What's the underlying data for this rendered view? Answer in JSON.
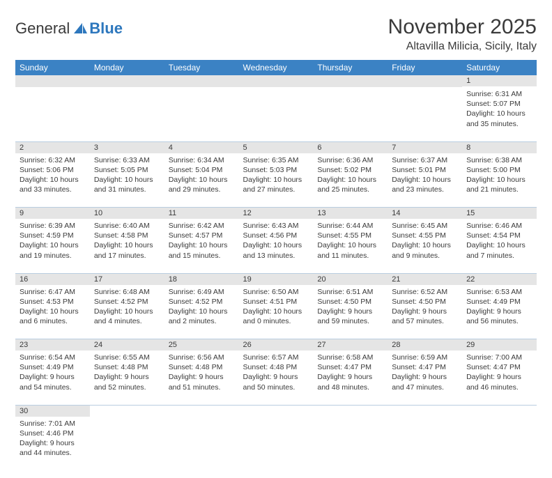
{
  "logo": {
    "text1": "General",
    "text2": "Blue"
  },
  "title": "November 2025",
  "location": "Altavilla Milicia, Sicily, Italy",
  "day_headers": [
    "Sunday",
    "Monday",
    "Tuesday",
    "Wednesday",
    "Thursday",
    "Friday",
    "Saturday"
  ],
  "colors": {
    "header_bg": "#3b82c4",
    "header_text": "#ffffff",
    "daynum_bg": "#e5e5e5",
    "border": "#b9cde0",
    "text": "#3a3a3a",
    "logo_blue": "#2d77bd"
  },
  "weeks": [
    [
      null,
      null,
      null,
      null,
      null,
      null,
      {
        "n": "1",
        "sr": "6:31 AM",
        "ss": "5:07 PM",
        "dl": "10 hours and 35 minutes."
      }
    ],
    [
      {
        "n": "2",
        "sr": "6:32 AM",
        "ss": "5:06 PM",
        "dl": "10 hours and 33 minutes."
      },
      {
        "n": "3",
        "sr": "6:33 AM",
        "ss": "5:05 PM",
        "dl": "10 hours and 31 minutes."
      },
      {
        "n": "4",
        "sr": "6:34 AM",
        "ss": "5:04 PM",
        "dl": "10 hours and 29 minutes."
      },
      {
        "n": "5",
        "sr": "6:35 AM",
        "ss": "5:03 PM",
        "dl": "10 hours and 27 minutes."
      },
      {
        "n": "6",
        "sr": "6:36 AM",
        "ss": "5:02 PM",
        "dl": "10 hours and 25 minutes."
      },
      {
        "n": "7",
        "sr": "6:37 AM",
        "ss": "5:01 PM",
        "dl": "10 hours and 23 minutes."
      },
      {
        "n": "8",
        "sr": "6:38 AM",
        "ss": "5:00 PM",
        "dl": "10 hours and 21 minutes."
      }
    ],
    [
      {
        "n": "9",
        "sr": "6:39 AM",
        "ss": "4:59 PM",
        "dl": "10 hours and 19 minutes."
      },
      {
        "n": "10",
        "sr": "6:40 AM",
        "ss": "4:58 PM",
        "dl": "10 hours and 17 minutes."
      },
      {
        "n": "11",
        "sr": "6:42 AM",
        "ss": "4:57 PM",
        "dl": "10 hours and 15 minutes."
      },
      {
        "n": "12",
        "sr": "6:43 AM",
        "ss": "4:56 PM",
        "dl": "10 hours and 13 minutes."
      },
      {
        "n": "13",
        "sr": "6:44 AM",
        "ss": "4:55 PM",
        "dl": "10 hours and 11 minutes."
      },
      {
        "n": "14",
        "sr": "6:45 AM",
        "ss": "4:55 PM",
        "dl": "10 hours and 9 minutes."
      },
      {
        "n": "15",
        "sr": "6:46 AM",
        "ss": "4:54 PM",
        "dl": "10 hours and 7 minutes."
      }
    ],
    [
      {
        "n": "16",
        "sr": "6:47 AM",
        "ss": "4:53 PM",
        "dl": "10 hours and 6 minutes."
      },
      {
        "n": "17",
        "sr": "6:48 AM",
        "ss": "4:52 PM",
        "dl": "10 hours and 4 minutes."
      },
      {
        "n": "18",
        "sr": "6:49 AM",
        "ss": "4:52 PM",
        "dl": "10 hours and 2 minutes."
      },
      {
        "n": "19",
        "sr": "6:50 AM",
        "ss": "4:51 PM",
        "dl": "10 hours and 0 minutes."
      },
      {
        "n": "20",
        "sr": "6:51 AM",
        "ss": "4:50 PM",
        "dl": "9 hours and 59 minutes."
      },
      {
        "n": "21",
        "sr": "6:52 AM",
        "ss": "4:50 PM",
        "dl": "9 hours and 57 minutes."
      },
      {
        "n": "22",
        "sr": "6:53 AM",
        "ss": "4:49 PM",
        "dl": "9 hours and 56 minutes."
      }
    ],
    [
      {
        "n": "23",
        "sr": "6:54 AM",
        "ss": "4:49 PM",
        "dl": "9 hours and 54 minutes."
      },
      {
        "n": "24",
        "sr": "6:55 AM",
        "ss": "4:48 PM",
        "dl": "9 hours and 52 minutes."
      },
      {
        "n": "25",
        "sr": "6:56 AM",
        "ss": "4:48 PM",
        "dl": "9 hours and 51 minutes."
      },
      {
        "n": "26",
        "sr": "6:57 AM",
        "ss": "4:48 PM",
        "dl": "9 hours and 50 minutes."
      },
      {
        "n": "27",
        "sr": "6:58 AM",
        "ss": "4:47 PM",
        "dl": "9 hours and 48 minutes."
      },
      {
        "n": "28",
        "sr": "6:59 AM",
        "ss": "4:47 PM",
        "dl": "9 hours and 47 minutes."
      },
      {
        "n": "29",
        "sr": "7:00 AM",
        "ss": "4:47 PM",
        "dl": "9 hours and 46 minutes."
      }
    ],
    [
      {
        "n": "30",
        "sr": "7:01 AM",
        "ss": "4:46 PM",
        "dl": "9 hours and 44 minutes."
      },
      null,
      null,
      null,
      null,
      null,
      null
    ]
  ],
  "labels": {
    "sunrise": "Sunrise: ",
    "sunset": "Sunset: ",
    "daylight": "Daylight: "
  }
}
